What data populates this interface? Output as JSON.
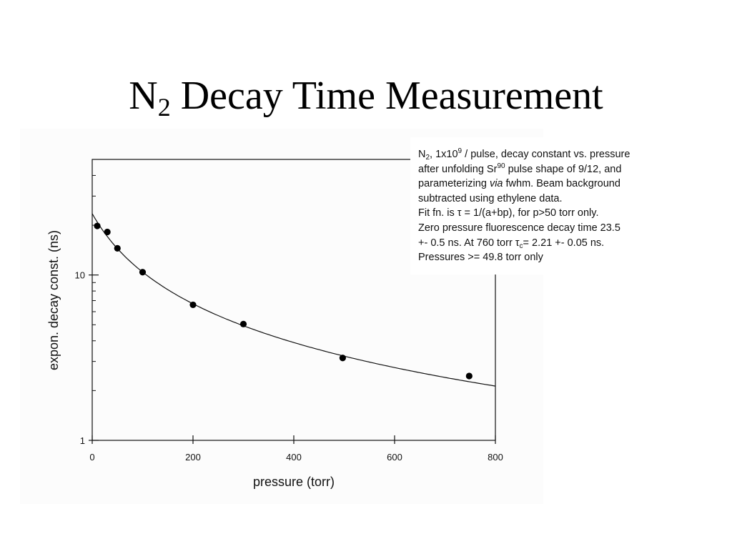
{
  "slide": {
    "title_main": "N",
    "title_sub": "2",
    "title_rest": " Decay Time Measurement"
  },
  "chart_data": {
    "type": "scatter",
    "xlabel": "pressure (torr)",
    "ylabel": "expon. decay const. (ns)",
    "xlim": [
      0,
      800
    ],
    "ylim": [
      1,
      50
    ],
    "yscale": "log",
    "x_ticks": [
      0,
      200,
      400,
      600,
      800
    ],
    "y_tick_labels": [
      1,
      10
    ],
    "grid": false,
    "series": [
      {
        "kind": "points",
        "points": [
          {
            "x": 10,
            "y": 19.8
          },
          {
            "x": 30,
            "y": 18.2
          },
          {
            "x": 50,
            "y": 14.5
          },
          {
            "x": 100,
            "y": 10.4
          },
          {
            "x": 200,
            "y": 6.6
          },
          {
            "x": 300,
            "y": 5.05
          },
          {
            "x": 497,
            "y": 3.15
          },
          {
            "x": 748,
            "y": 2.45
          }
        ]
      },
      {
        "kind": "fit",
        "function": "tau = 1/(a+bp)",
        "a": 0.04255,
        "b": 0.000534,
        "x_range": [
          0,
          800
        ]
      }
    ]
  },
  "note": {
    "l1_a": "N",
    "l1_sub": "2",
    "l1_b": ", 1x10",
    "l1_sup": "9",
    "l1_c": " / pulse, decay constant vs. pressure",
    "l2_a": "after unfolding Sr",
    "l2_sup": "90",
    "l2_b": " pulse shape of 9/12, and",
    "l3_a": "parameterizing ",
    "l3_em": "via",
    "l3_b": " fwhm. Beam background",
    "l4": "subtracted using ethylene data.",
    "l5": "Fit fn. is τ = 1/(a+bp), for p>50 torr only.",
    "l6": "Zero pressure fluorescence decay time 23.5",
    "l7_a": "+- 0.5 ns. At 760 torr τ",
    "l7_sub": "c",
    "l7_b": "= 2.21 +- 0.05 ns.",
    "l8": "Pressures >= 49.8 torr only"
  }
}
